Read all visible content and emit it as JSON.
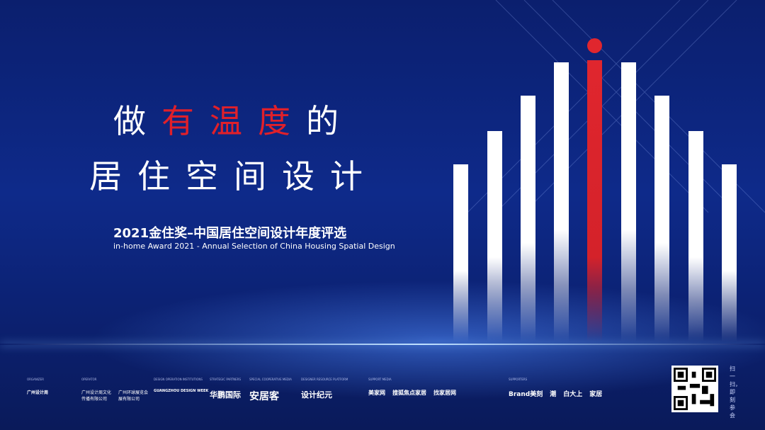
{
  "headline": {
    "line1_pre": "做",
    "line1_red": "有温度",
    "line1_post": "的",
    "line2": "居住空间设计"
  },
  "award": {
    "cn": "2021金住奖–中国居住空间设计年度评选",
    "en": "in-home Award  2021 - Annual Selection of China Housing Spatial Design"
  },
  "colors": {
    "background": "#0e2a8a",
    "accent_red": "#e0262e",
    "bars": "#ffffff"
  },
  "sponsors": [
    {
      "label": "ORGANIZER",
      "logos": [
        "广州设计周"
      ]
    },
    {
      "label": "OPERATOR",
      "logos": [
        "广州设计周文化传播有限公司",
        "广州环球展览会展有限公司"
      ]
    },
    {
      "label": "DESIGN OPERATION INSTITUTIONS",
      "logos": [
        "GUANGZHOU DESIGN WEEK"
      ]
    },
    {
      "label": "STRATEGIC PARTNERS",
      "logos": [
        "华鹏国际"
      ]
    },
    {
      "label": "SPECIAL COOPERATIVE MEDIA",
      "logos": [
        "安居客"
      ]
    },
    {
      "label": "DESIGNER RESOURCE PLATFORM",
      "logos": [
        "设计纪元"
      ]
    },
    {
      "label": "SUPPORT MEDIA",
      "logos": [
        "美家网",
        "搜狐焦点家居",
        "找家居网"
      ]
    },
    {
      "label": "SUPPORTERS",
      "logos": [
        "Brand美刻",
        "潮",
        "白大上",
        "家居"
      ]
    }
  ],
  "qr": {
    "caption": "扫一扫，即刻参会"
  }
}
